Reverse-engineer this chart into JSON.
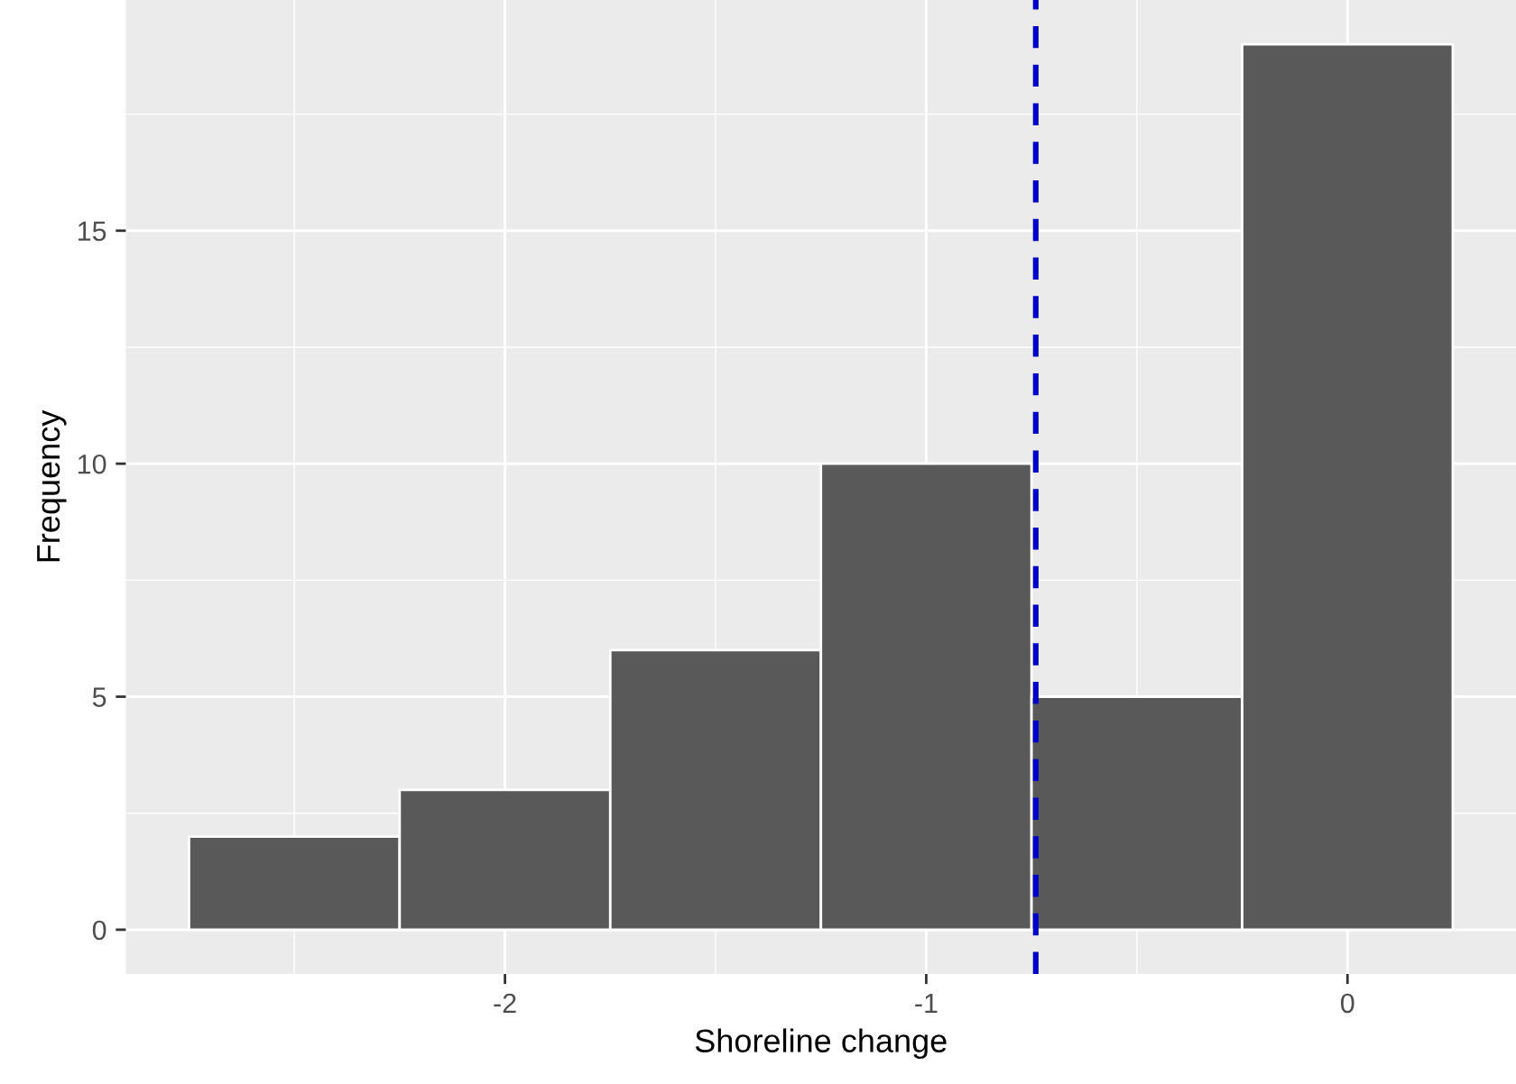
{
  "chart_data": {
    "type": "histogram",
    "xlabel": "Shoreline change",
    "ylabel": "Frequency",
    "bins": [
      -2.75,
      -2.25,
      -1.75,
      -1.25,
      -0.75,
      -0.25,
      0.25
    ],
    "values": [
      2,
      3,
      6,
      10,
      5,
      19
    ],
    "color": "#595959",
    "xlim": [
      -2.9,
      0.4
    ],
    "xticks": [
      -2,
      -1,
      0
    ],
    "ylim": [
      -0.95,
      19.95
    ],
    "yticks": [
      0,
      5,
      10,
      15
    ],
    "grid": true,
    "ref_lines": [
      {
        "axis": "x",
        "value": -0.74,
        "color": "#0000cd",
        "line_style": "dashed"
      }
    ]
  }
}
